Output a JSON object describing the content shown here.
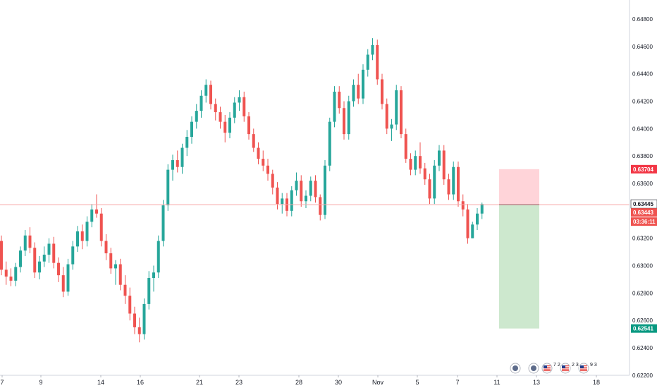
{
  "colors": {
    "up": "#26a69a",
    "down": "#ef5350",
    "price_line": "#f7a8a8",
    "stop_zone": "#ffcdd2",
    "target_zone": "#c8e6c9",
    "axis_text": "#131722",
    "label_entry_bg": "#ffffff",
    "label_stop_bg": "#f23645",
    "label_target_bg": "#089981",
    "label_current_bg": "#ef5350"
  },
  "price_axis": {
    "ticks": [
      "0.64800",
      "0.64600",
      "0.64400",
      "0.64200",
      "0.64000",
      "0.63800",
      "0.63600",
      "0.63400",
      "0.63200",
      "0.63000",
      "0.62800",
      "0.62600",
      "0.62400",
      "0.62200"
    ],
    "labels": {
      "stop": "0.63704",
      "entry": "0.63445",
      "current": "0.63443",
      "countdown": "03:36:11",
      "target": "0.62541"
    }
  },
  "time_axis": {
    "ticks": [
      "7",
      "9",
      "14",
      "16",
      "21",
      "23",
      "28",
      "30",
      "Nov",
      "5",
      "7",
      "11",
      "13",
      "18"
    ]
  },
  "events": [
    {
      "icon": "economic-event-icon",
      "count": ""
    },
    {
      "icon": "economic-event-icon",
      "count": ""
    },
    {
      "icon": "us-flag-icon",
      "count": "7 2"
    },
    {
      "icon": "us-flag-icon",
      "count": "2 3"
    },
    {
      "icon": "us-flag-icon",
      "count": "9 3"
    }
  ],
  "chart_data": {
    "type": "candlestick",
    "ylim": [
      0.622,
      0.649
    ],
    "series": [
      {
        "values": [
          [
            0.6318,
            0.6322,
            0.6293,
            0.6297
          ],
          [
            0.6297,
            0.6303,
            0.6286,
            0.6292
          ],
          [
            0.6292,
            0.6298,
            0.6285,
            0.6289
          ],
          [
            0.6289,
            0.6302,
            0.6285,
            0.6299
          ],
          [
            0.6299,
            0.6314,
            0.6295,
            0.6311
          ],
          [
            0.6311,
            0.6326,
            0.6307,
            0.6322
          ],
          [
            0.6322,
            0.6328,
            0.6309,
            0.6313
          ],
          [
            0.6313,
            0.6317,
            0.6291,
            0.6295
          ],
          [
            0.6295,
            0.6307,
            0.629,
            0.6303
          ],
          [
            0.6303,
            0.6314,
            0.6299,
            0.6308
          ],
          [
            0.6308,
            0.632,
            0.6302,
            0.6316
          ],
          [
            0.6316,
            0.6321,
            0.6298,
            0.6302
          ],
          [
            0.6302,
            0.6306,
            0.6288,
            0.6293
          ],
          [
            0.6293,
            0.6299,
            0.6277,
            0.6281
          ],
          [
            0.6281,
            0.6305,
            0.6278,
            0.6301
          ],
          [
            0.6301,
            0.6318,
            0.6297,
            0.6314
          ],
          [
            0.6314,
            0.6329,
            0.631,
            0.6325
          ],
          [
            0.6325,
            0.633,
            0.6312,
            0.6318
          ],
          [
            0.6318,
            0.6336,
            0.6314,
            0.6332
          ],
          [
            0.6332,
            0.6345,
            0.6328,
            0.6341
          ],
          [
            0.6341,
            0.6352,
            0.6335,
            0.6338
          ],
          [
            0.6338,
            0.6342,
            0.6314,
            0.6318
          ],
          [
            0.6318,
            0.6323,
            0.6304,
            0.6309
          ],
          [
            0.6309,
            0.6313,
            0.6294,
            0.6298
          ],
          [
            0.6298,
            0.6304,
            0.6286,
            0.6301
          ],
          [
            0.6301,
            0.6305,
            0.6282,
            0.6286
          ],
          [
            0.6286,
            0.6293,
            0.6272,
            0.6278
          ],
          [
            0.6278,
            0.6284,
            0.626,
            0.6265
          ],
          [
            0.6265,
            0.627,
            0.625,
            0.6255
          ],
          [
            0.6255,
            0.6262,
            0.6244,
            0.625
          ],
          [
            0.625,
            0.6276,
            0.6246,
            0.6272
          ],
          [
            0.6272,
            0.6296,
            0.6268,
            0.6291
          ],
          [
            0.6291,
            0.63,
            0.6281,
            0.6295
          ],
          [
            0.6295,
            0.6322,
            0.6291,
            0.6318
          ],
          [
            0.6318,
            0.6348,
            0.6314,
            0.6344
          ],
          [
            0.6344,
            0.6374,
            0.634,
            0.637
          ],
          [
            0.637,
            0.6381,
            0.6362,
            0.6377
          ],
          [
            0.6377,
            0.6384,
            0.6368,
            0.6372
          ],
          [
            0.6372,
            0.6389,
            0.6367,
            0.6386
          ],
          [
            0.6386,
            0.6399,
            0.638,
            0.6394
          ],
          [
            0.6394,
            0.6409,
            0.6389,
            0.6405
          ],
          [
            0.6405,
            0.6418,
            0.64,
            0.6413
          ],
          [
            0.6413,
            0.6428,
            0.6408,
            0.6424
          ],
          [
            0.6424,
            0.6436,
            0.6419,
            0.6432
          ],
          [
            0.6432,
            0.6435,
            0.6414,
            0.6418
          ],
          [
            0.6418,
            0.6422,
            0.6406,
            0.6412
          ],
          [
            0.6412,
            0.6416,
            0.64,
            0.6405
          ],
          [
            0.6405,
            0.641,
            0.639,
            0.6397
          ],
          [
            0.6397,
            0.6412,
            0.6393,
            0.6408
          ],
          [
            0.6408,
            0.6423,
            0.6404,
            0.6419
          ],
          [
            0.6419,
            0.6428,
            0.6413,
            0.6423
          ],
          [
            0.6423,
            0.6427,
            0.6405,
            0.6409
          ],
          [
            0.6409,
            0.6412,
            0.6392,
            0.6396
          ],
          [
            0.6396,
            0.64,
            0.6383,
            0.6386
          ],
          [
            0.6386,
            0.639,
            0.6374,
            0.6378
          ],
          [
            0.6378,
            0.6384,
            0.6369,
            0.6373
          ],
          [
            0.6373,
            0.6378,
            0.6362,
            0.6367
          ],
          [
            0.6367,
            0.637,
            0.6352,
            0.6357
          ],
          [
            0.6357,
            0.6361,
            0.6341,
            0.6345
          ],
          [
            0.6345,
            0.6353,
            0.6338,
            0.6349
          ],
          [
            0.6349,
            0.6353,
            0.6336,
            0.634
          ],
          [
            0.634,
            0.6358,
            0.6336,
            0.6355
          ],
          [
            0.6355,
            0.6368,
            0.6351,
            0.6362
          ],
          [
            0.6362,
            0.6366,
            0.6343,
            0.6347
          ],
          [
            0.6347,
            0.6355,
            0.6342,
            0.6351
          ],
          [
            0.6351,
            0.6365,
            0.6347,
            0.6362
          ],
          [
            0.6362,
            0.6366,
            0.6346,
            0.635
          ],
          [
            0.635,
            0.6352,
            0.6333,
            0.6337
          ],
          [
            0.6337,
            0.6377,
            0.6334,
            0.6373
          ],
          [
            0.6373,
            0.6408,
            0.6369,
            0.6405
          ],
          [
            0.6405,
            0.6431,
            0.6401,
            0.6427
          ],
          [
            0.6427,
            0.6431,
            0.6411,
            0.6415
          ],
          [
            0.6415,
            0.642,
            0.6392,
            0.6396
          ],
          [
            0.6396,
            0.6424,
            0.6392,
            0.642
          ],
          [
            0.642,
            0.6436,
            0.6416,
            0.6432
          ],
          [
            0.6432,
            0.644,
            0.6418,
            0.6422
          ],
          [
            0.6422,
            0.6447,
            0.6418,
            0.6443
          ],
          [
            0.6443,
            0.6458,
            0.6438,
            0.6454
          ],
          [
            0.6454,
            0.6466,
            0.645,
            0.6461
          ],
          [
            0.6461,
            0.6465,
            0.6432,
            0.6436
          ],
          [
            0.6436,
            0.644,
            0.6414,
            0.6418
          ],
          [
            0.6418,
            0.6422,
            0.6396,
            0.64
          ],
          [
            0.64,
            0.6407,
            0.6391,
            0.6403
          ],
          [
            0.6403,
            0.6432,
            0.6399,
            0.6428
          ],
          [
            0.6428,
            0.6431,
            0.6393,
            0.6396
          ],
          [
            0.6396,
            0.64,
            0.6375,
            0.6378
          ],
          [
            0.6378,
            0.6382,
            0.6366,
            0.637
          ],
          [
            0.637,
            0.6384,
            0.6366,
            0.638
          ],
          [
            0.638,
            0.639,
            0.6367,
            0.6371
          ],
          [
            0.6371,
            0.6375,
            0.6359,
            0.6363
          ],
          [
            0.6363,
            0.6367,
            0.6345,
            0.6349
          ],
          [
            0.6349,
            0.6377,
            0.6345,
            0.6373
          ],
          [
            0.6373,
            0.6388,
            0.6369,
            0.6384
          ],
          [
            0.6384,
            0.6388,
            0.6359,
            0.6363
          ],
          [
            0.6363,
            0.6367,
            0.6348,
            0.6352
          ],
          [
            0.6352,
            0.6376,
            0.6348,
            0.6372
          ],
          [
            0.6372,
            0.6376,
            0.6343,
            0.6347
          ],
          [
            0.6347,
            0.6352,
            0.6336,
            0.6341
          ],
          [
            0.6341,
            0.6345,
            0.6316,
            0.632
          ],
          [
            0.632,
            0.6332,
            0.632,
            0.633
          ],
          [
            0.633,
            0.6342,
            0.6326,
            0.6338
          ],
          [
            0.6338,
            0.6346,
            0.6334,
            0.6345
          ]
        ]
      }
    ],
    "horizontal_line": 0.63445,
    "position": {
      "type": "short",
      "entry": 0.63445,
      "stop": 0.63704,
      "target": 0.62541,
      "start_index": 105,
      "end_index": 115
    }
  }
}
